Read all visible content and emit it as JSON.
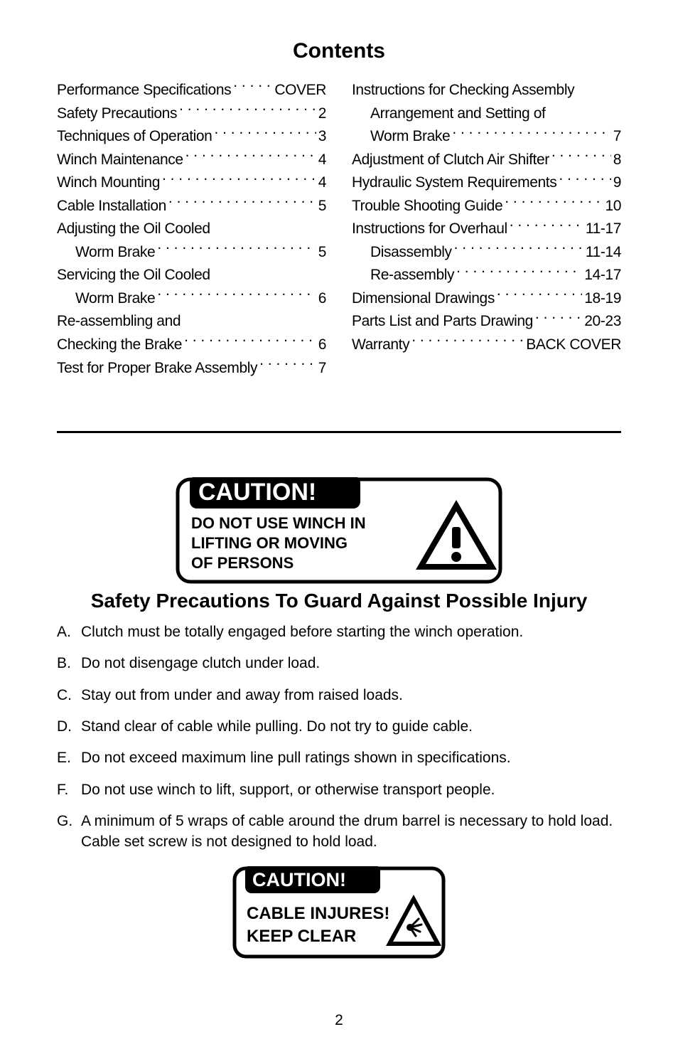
{
  "title": "Contents",
  "toc_left": [
    {
      "label": "Performance Specifications",
      "page": "COVER",
      "indent": false,
      "dots": true
    },
    {
      "label": "Safety Precautions",
      "page": "2",
      "indent": false,
      "dots": true
    },
    {
      "label": "Techniques of Operation",
      "page": "3",
      "indent": false,
      "dots": true
    },
    {
      "label": "Winch Maintenance",
      "page": "4",
      "indent": false,
      "dots": true
    },
    {
      "label": "Winch Mounting",
      "page": "4",
      "indent": false,
      "dots": true
    },
    {
      "label": "Cable Installation",
      "page": "5",
      "indent": false,
      "dots": true
    },
    {
      "label": "Adjusting the Oil Cooled",
      "page": "",
      "indent": false,
      "dots": false
    },
    {
      "label": "Worm Brake",
      "page": "5",
      "indent": true,
      "dots": true
    },
    {
      "label": "Servicing the Oil Cooled",
      "page": "",
      "indent": false,
      "dots": false
    },
    {
      "label": "Worm Brake",
      "page": "6",
      "indent": true,
      "dots": true
    },
    {
      "label": "Re-assembling and",
      "page": "",
      "indent": false,
      "dots": false
    },
    {
      "label": "Checking the Brake",
      "page": "6",
      "indent": false,
      "dots": true
    },
    {
      "label": "Test for Proper Brake Assembly",
      "page": "7",
      "indent": false,
      "dots": true
    }
  ],
  "toc_right": [
    {
      "label": "Instructions for Checking Assembly",
      "page": "",
      "indent": false,
      "dots": false
    },
    {
      "label": "Arrangement and Setting of",
      "page": "",
      "indent": true,
      "dots": false
    },
    {
      "label": "Worm Brake",
      "page": "7",
      "indent": true,
      "dots": true
    },
    {
      "label": "Adjustment of Clutch Air Shifter",
      "page": "8",
      "indent": false,
      "dots": true
    },
    {
      "label": "Hydraulic System Requirements",
      "page": "9",
      "indent": false,
      "dots": true
    },
    {
      "label": "Trouble Shooting Guide",
      "page": "10",
      "indent": false,
      "dots": true
    },
    {
      "label": "Instructions for Overhaul",
      "page": "11-17",
      "indent": false,
      "dots": true
    },
    {
      "label": "Disassembly",
      "page": "11-14",
      "indent": true,
      "dots": true
    },
    {
      "label": "Re-assembly",
      "page": "14-17",
      "indent": true,
      "dots": true
    },
    {
      "label": "Dimensional Drawings",
      "page": "18-19",
      "indent": false,
      "dots": true
    },
    {
      "label": "Parts List and Parts Drawing",
      "page": "20-23",
      "indent": false,
      "dots": true
    },
    {
      "label": "Warranty",
      "page": "BACK COVER",
      "indent": false,
      "dots": true
    }
  ],
  "caution1": {
    "header": "CAUTION!",
    "line1": "DO NOT USE WINCH IN",
    "line2": "LIFTING OR MOVING",
    "line3": "OF PERSONS",
    "colors": {
      "bg": "#000000",
      "fg": "#ffffff",
      "tri_fill": "#000000",
      "tri_stroke": "#000000",
      "border": "#000000"
    }
  },
  "section_title": "Safety Precautions To Guard Against Possible Injury",
  "precautions": [
    {
      "letter": "A.",
      "text": "Clutch must be totally engaged before starting the winch operation."
    },
    {
      "letter": "B.",
      "text": "Do not disengage clutch under load."
    },
    {
      "letter": "C.",
      "text": "Stay out from under and away from raised loads."
    },
    {
      "letter": "D.",
      "text": "Stand clear of cable while pulling. Do not try to guide cable."
    },
    {
      "letter": "E.",
      "text": "Do not exceed maximum line pull ratings shown in specifications."
    },
    {
      "letter": "F.",
      "text": "Do not use winch to lift, support, or otherwise transport people."
    },
    {
      "letter": "G.",
      "text": "A minimum of 5 wraps of cable around the drum barrel is necessary to hold load. Cable set screw is not designed to hold load."
    }
  ],
  "caution2": {
    "header": "CAUTION!",
    "line1": "CABLE INJURES!",
    "line2": "KEEP CLEAR"
  },
  "page_number": "2"
}
